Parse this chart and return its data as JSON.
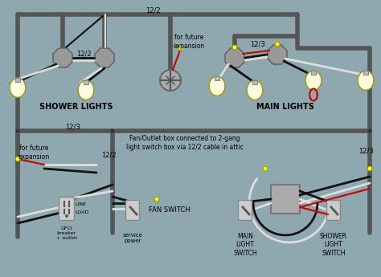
{
  "bg_color": "#8fa8b0",
  "wire_gray": "#555555",
  "wire_black": "#111111",
  "wire_white": "#dddddd",
  "wire_red": "#cc0000",
  "bulb_fill": "#fffce0",
  "bulb_edge": "#999900",
  "switch_fill": "#cccccc",
  "outlet_fill": "#cccccc",
  "box_fill": "#aaaaaa",
  "junction_fill": "#bbbbbb",
  "text_col": "#000000",
  "labels": {
    "shower_lights": "SHOWER LIGHTS",
    "main_lights": "MAIN LIGHTS",
    "fan_switch": "FAN SWITCH",
    "main_light_switch": "MAIN\nLIGHT\nSWITCH",
    "shower_light_switch": "SHOWER\nLIGHT\nSWITCH",
    "gfci": "GFCI\nbreaker\n+ outlet",
    "service_power": "service\npower",
    "for_future_top": "for future\nexpansion",
    "for_future_left": "for future\nexpansion",
    "fan_note": "Fan/Outlet box connected to 2-gang\nlight switch box via 12/2 cable in attic",
    "122_top": "12/2",
    "123_mid": "12/3",
    "122_left": "12/2",
    "123_right": "12/3",
    "line_lbl": "LINE",
    "load_lbl": "LOAD"
  }
}
